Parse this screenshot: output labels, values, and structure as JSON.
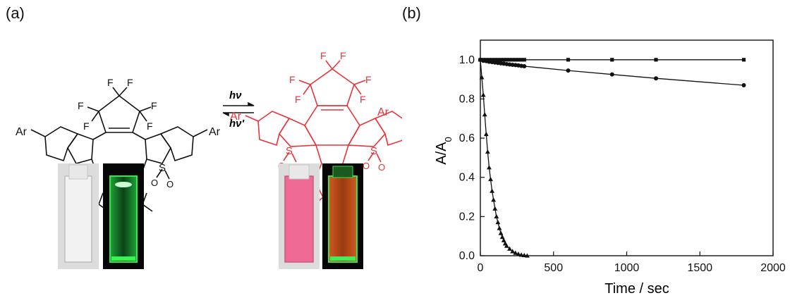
{
  "panels": {
    "a": "(a)",
    "b": "(b)"
  },
  "scheme": {
    "forward_light": "hν",
    "reverse_light": "hν'",
    "substituent": "Ar",
    "fluorine": "F",
    "sulfonyl_s": "S",
    "oxygen": "O",
    "open_form_color": "#111111",
    "closed_form_color": "#e8333a",
    "photos": [
      {
        "name": "open-form-ambient",
        "liquid": "#efefef",
        "bg": "#d9d9d9"
      },
      {
        "name": "open-form-uv",
        "liquid": "#0a3a10",
        "glow": "#2ee84a",
        "bg": "#0a0a0a"
      },
      {
        "name": "closed-form-ambient",
        "liquid": "#ec6d95",
        "bg": "#d9d9d9"
      },
      {
        "name": "closed-form-uv",
        "liquid": "#c4511a",
        "glow": "#3ce04e",
        "bg": "#0a0a0a"
      }
    ]
  },
  "chart_data": {
    "type": "scatter",
    "xlabel": "Time / sec",
    "ylabel": "A/A0",
    "ylabel_main": "A/A",
    "ylabel_sub": "0",
    "xlim": [
      0,
      2000
    ],
    "ylim": [
      0,
      1.1
    ],
    "xticks": [
      0,
      500,
      1000,
      1500,
      2000
    ],
    "yticks": [
      0.0,
      0.2,
      0.4,
      0.6,
      0.8,
      1.0
    ],
    "ytick_labels": [
      "0.0",
      "0.2",
      "0.4",
      "0.6",
      "0.8",
      "1.0"
    ],
    "grid": false,
    "series": [
      {
        "marker": "square",
        "x": [
          0,
          20,
          40,
          60,
          80,
          100,
          120,
          140,
          160,
          180,
          200,
          220,
          240,
          260,
          280,
          300,
          600,
          900,
          1200,
          1800
        ],
        "y": [
          1.0,
          1.0,
          1.0,
          1.0,
          1.0,
          1.0,
          1.0,
          1.0,
          1.0,
          1.0,
          1.0,
          1.0,
          1.0,
          1.0,
          1.0,
          1.0,
          1.0,
          1.0,
          1.0,
          1.0
        ]
      },
      {
        "marker": "circle",
        "x": [
          0,
          20,
          40,
          60,
          80,
          100,
          120,
          140,
          160,
          180,
          200,
          220,
          240,
          260,
          280,
          300,
          600,
          900,
          1200,
          1800
        ],
        "y": [
          1.0,
          0.995,
          0.993,
          0.99,
          0.988,
          0.986,
          0.984,
          0.982,
          0.98,
          0.978,
          0.976,
          0.974,
          0.973,
          0.971,
          0.969,
          0.967,
          0.945,
          0.925,
          0.905,
          0.87
        ]
      },
      {
        "marker": "triangle",
        "x": [
          0,
          10,
          20,
          30,
          40,
          50,
          60,
          70,
          80,
          90,
          100,
          110,
          120,
          130,
          140,
          150,
          160,
          170,
          180,
          200,
          220,
          240,
          260,
          280,
          300,
          320
        ],
        "y": [
          1.0,
          0.91,
          0.82,
          0.72,
          0.62,
          0.53,
          0.45,
          0.39,
          0.33,
          0.285,
          0.24,
          0.2,
          0.17,
          0.14,
          0.115,
          0.095,
          0.078,
          0.062,
          0.05,
          0.035,
          0.022,
          0.014,
          0.008,
          0.004,
          0.002,
          0.0
        ]
      }
    ]
  }
}
